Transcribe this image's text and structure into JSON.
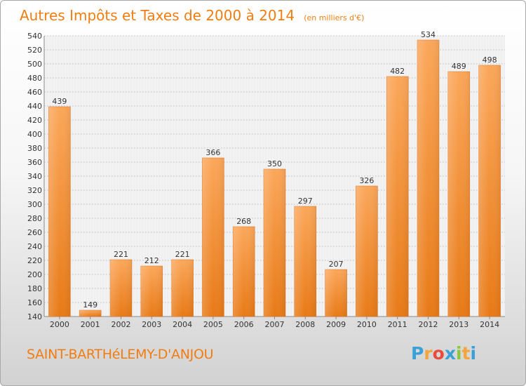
{
  "chart_data": {
    "type": "bar",
    "title": "Autres Impôts et Taxes de 2000 à 2014",
    "subtitle": "(en milliers d'€)",
    "categories": [
      "2000",
      "2001",
      "2002",
      "2003",
      "2004",
      "2005",
      "2006",
      "2007",
      "2008",
      "2009",
      "2010",
      "2011",
      "2012",
      "2013",
      "2014"
    ],
    "values": [
      439,
      149,
      221,
      212,
      221,
      366,
      268,
      350,
      297,
      207,
      326,
      482,
      534,
      489,
      498
    ],
    "ylim": [
      140,
      540
    ],
    "y_ticks": [
      140,
      160,
      180,
      200,
      220,
      240,
      260,
      280,
      300,
      320,
      340,
      360,
      380,
      400,
      420,
      440,
      460,
      480,
      500,
      520,
      540
    ],
    "grid": true,
    "bar_color": "#f28a1d"
  },
  "location_label": "SAINT-BARTHéLEMY-D'ANJOU",
  "brand": {
    "letters": [
      "P",
      "r",
      "o",
      "x",
      "i",
      "t",
      "i"
    ],
    "colors": [
      "#3aa0d8",
      "#f3a43b",
      "#e94b3c",
      "#3aa0d8",
      "#8cc63f",
      "#f3a43b",
      "#3aa0d8"
    ]
  }
}
